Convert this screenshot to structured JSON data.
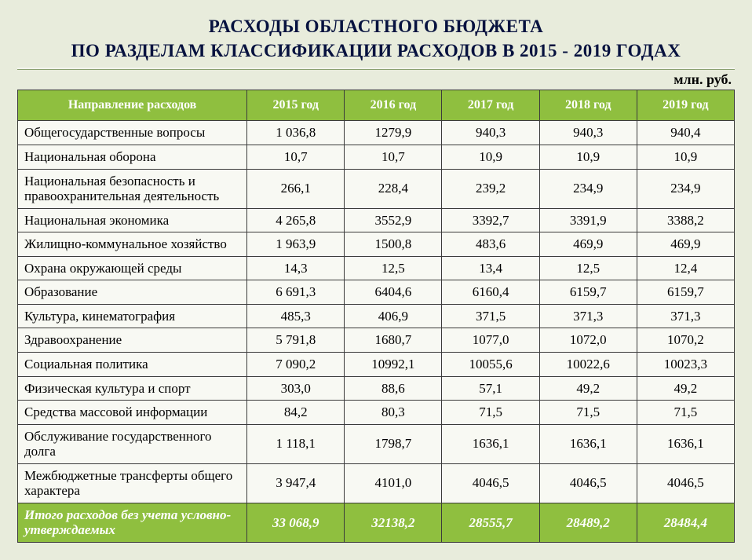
{
  "title_line1": "РАСХОДЫ ОБЛАСТНОГО БЮДЖЕТА",
  "title_line2": "ПО РАЗДЕЛАМ КЛАССИФИКАЦИИ РАСХОДОВ В 2015 - 2019 ГОДАХ",
  "unit": "млн. руб.",
  "colors": {
    "page_bg": "#e8ecdc",
    "header_bg": "#8fbf3f",
    "header_fg": "#ffffff",
    "cell_bg": "#f8f9f3",
    "border": "#3b3b3b",
    "title_fg": "#07123f"
  },
  "table": {
    "header_label": "Направление расходов",
    "year_headers": [
      "2015 год",
      "2016 год",
      "2017 год",
      "2018 год",
      "2019 год"
    ],
    "rows": [
      {
        "label": "Общегосударственные вопросы",
        "values": [
          "1 036,8",
          "1279,9",
          "940,3",
          "940,3",
          "940,4"
        ]
      },
      {
        "label": "Национальная оборона",
        "values": [
          "10,7",
          "10,7",
          "10,9",
          "10,9",
          "10,9"
        ]
      },
      {
        "label": "Национальная безопасность и правоохранительная деятельность",
        "values": [
          "266,1",
          "228,4",
          "239,2",
          "234,9",
          "234,9"
        ]
      },
      {
        "label": "Национальная экономика",
        "values": [
          "4 265,8",
          "3552,9",
          "3392,7",
          "3391,9",
          "3388,2"
        ]
      },
      {
        "label": "Жилищно-коммунальное хозяйство",
        "values": [
          "1 963,9",
          "1500,8",
          "483,6",
          "469,9",
          "469,9"
        ]
      },
      {
        "label": "Охрана окружающей среды",
        "values": [
          "14,3",
          "12,5",
          "13,4",
          "12,5",
          "12,4"
        ]
      },
      {
        "label": "Образование",
        "values": [
          "6 691,3",
          "6404,6",
          "6160,4",
          "6159,7",
          "6159,7"
        ]
      },
      {
        "label": "Культура, кинематография",
        "values": [
          "485,3",
          "406,9",
          "371,5",
          "371,3",
          "371,3"
        ]
      },
      {
        "label": "Здравоохранение",
        "values": [
          "5 791,8",
          "1680,7",
          "1077,0",
          "1072,0",
          "1070,2"
        ]
      },
      {
        "label": "Социальная политика",
        "values": [
          "7 090,2",
          "10992,1",
          "10055,6",
          "10022,6",
          "10023,3"
        ]
      },
      {
        "label": "Физическая культура и спорт",
        "values": [
          "303,0",
          "88,6",
          "57,1",
          "49,2",
          "49,2"
        ]
      },
      {
        "label": "Средства массовой информации",
        "values": [
          "84,2",
          "80,3",
          "71,5",
          "71,5",
          "71,5"
        ]
      },
      {
        "label": "Обслуживание государственного долга",
        "values": [
          "1 118,1",
          "1798,7",
          "1636,1",
          "1636,1",
          "1636,1"
        ]
      },
      {
        "label": "Межбюджетные трансферты общего характера",
        "values": [
          "3 947,4",
          "4101,0",
          "4046,5",
          "4046,5",
          "4046,5"
        ]
      }
    ],
    "total": {
      "label": "Итого расходов без учета условно-утверждаемых",
      "values": [
        "33 068,9",
        "32138,2",
        "28555,7",
        "28489,2",
        "28484,4"
      ]
    }
  }
}
